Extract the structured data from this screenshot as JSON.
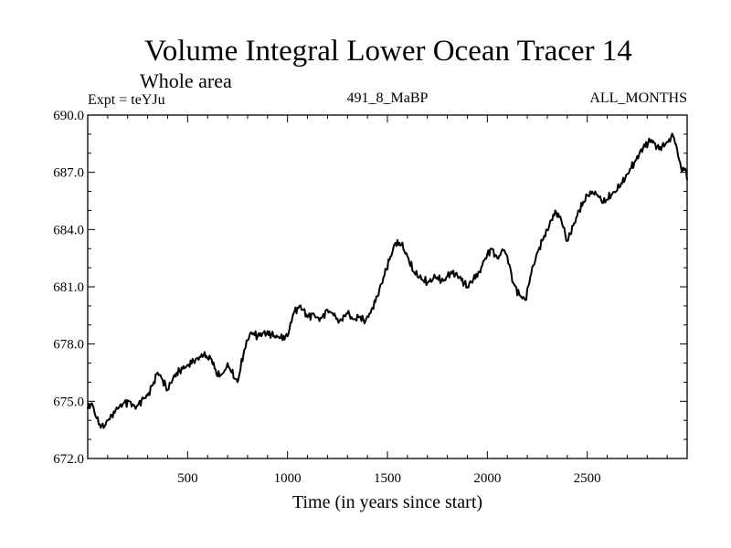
{
  "chart_data": {
    "type": "line",
    "title": "Volume Integral Lower Ocean Tracer 14",
    "subtitle": "Whole area",
    "experiment_label": "Expt = teYJu",
    "center_label": "491_8_MaBP",
    "right_label": "ALL_MONTHS",
    "xlabel": "Time (in years since start)",
    "ylabel": "",
    "xlim": [
      0,
      3000
    ],
    "ylim": [
      672.0,
      690.0
    ],
    "x_ticks": [
      500,
      1000,
      1500,
      2000,
      2500
    ],
    "x_tick_labels": [
      "500",
      "1000",
      "1500",
      "2000",
      "2500"
    ],
    "y_ticks": [
      672.0,
      675.0,
      678.0,
      681.0,
      684.0,
      687.0,
      690.0
    ],
    "y_tick_labels": [
      "672.0",
      "675.0",
      "678.0",
      "681.0",
      "684.0",
      "687.0",
      "690.0"
    ],
    "grid": false,
    "series": [
      {
        "name": "Volume Integral Lower Ocean Tracer 14",
        "color": "#000000",
        "x": [
          0,
          20,
          40,
          60,
          80,
          100,
          120,
          150,
          180,
          210,
          240,
          270,
          300,
          330,
          350,
          370,
          400,
          430,
          460,
          500,
          540,
          580,
          620,
          650,
          680,
          700,
          720,
          750,
          780,
          800,
          820,
          850,
          880,
          920,
          960,
          1000,
          1030,
          1060,
          1080,
          1100,
          1130,
          1160,
          1200,
          1230,
          1260,
          1300,
          1330,
          1360,
          1390,
          1420,
          1450,
          1480,
          1510,
          1540,
          1570,
          1600,
          1630,
          1660,
          1700,
          1740,
          1780,
          1820,
          1860,
          1900,
          1930,
          1960,
          1990,
          2020,
          2050,
          2080,
          2100,
          2130,
          2160,
          2190,
          2220,
          2250,
          2280,
          2310,
          2340,
          2370,
          2400,
          2430,
          2460,
          2500,
          2540,
          2580,
          2620,
          2660,
          2700,
          2740,
          2780,
          2820,
          2860,
          2900,
          2930,
          2950,
          2970,
          2990,
          3000
        ],
        "values": [
          674.6,
          674.9,
          674.2,
          673.8,
          673.6,
          674.0,
          674.3,
          674.6,
          674.9,
          675.0,
          674.6,
          675.1,
          675.3,
          676.0,
          676.5,
          676.2,
          675.6,
          676.3,
          676.6,
          676.9,
          677.2,
          677.4,
          677.2,
          676.3,
          676.5,
          677.0,
          676.5,
          676.0,
          677.5,
          678.2,
          678.6,
          678.4,
          678.6,
          678.5,
          678.3,
          678.4,
          679.6,
          680.0,
          679.8,
          679.4,
          679.6,
          679.2,
          679.8,
          679.5,
          679.2,
          679.6,
          679.3,
          679.4,
          679.2,
          679.8,
          680.5,
          681.5,
          682.4,
          683.3,
          683.2,
          682.6,
          681.8,
          681.5,
          681.2,
          681.5,
          681.3,
          681.8,
          681.5,
          681.0,
          681.4,
          681.8,
          682.5,
          683.0,
          682.5,
          682.9,
          682.6,
          681.2,
          680.6,
          680.3,
          681.7,
          682.8,
          683.5,
          684.2,
          685.0,
          684.5,
          683.4,
          684.2,
          685.0,
          685.8,
          686.0,
          685.4,
          685.8,
          686.2,
          686.9,
          687.6,
          688.3,
          688.7,
          688.2,
          688.6,
          688.9,
          688.2,
          687.2,
          687.2,
          686.6
        ]
      }
    ]
  }
}
